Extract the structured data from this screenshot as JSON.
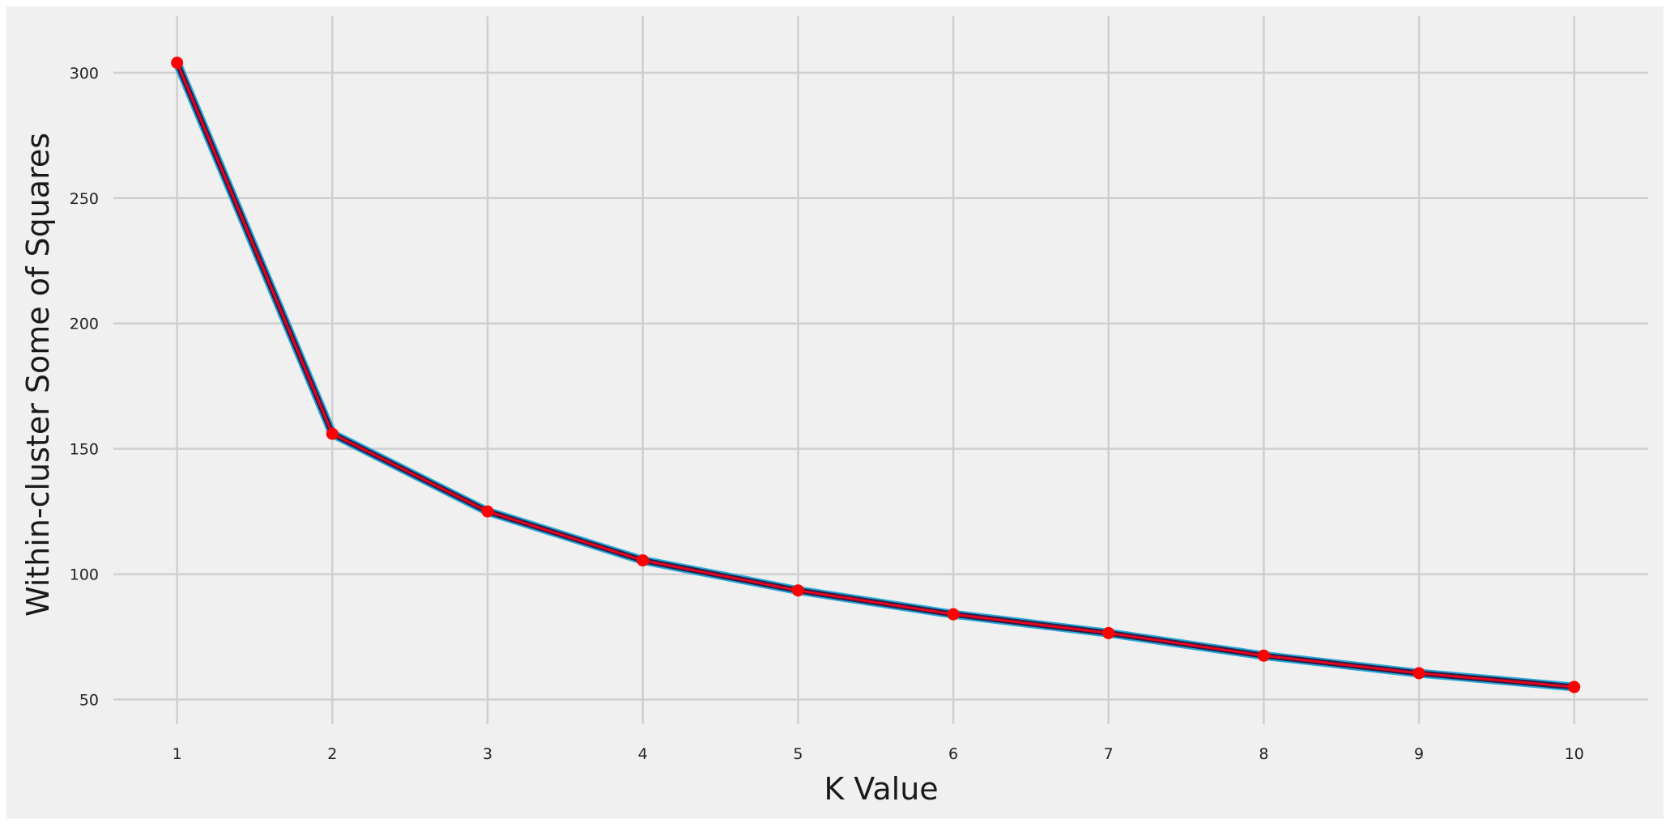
{
  "colors": {
    "background": "#ffffff",
    "plot_area": "#f0f0f0",
    "grid": "#cfcfcf",
    "line_outer": "#2aa7d6",
    "line_inner": "#2a1f4a",
    "line_core": "#e8001c",
    "marker": "#ff0000"
  },
  "chart_data": {
    "type": "line",
    "title": "",
    "xlabel": "K Value",
    "ylabel": "Within-cluster Some of Squares",
    "x": [
      1,
      2,
      3,
      4,
      5,
      6,
      7,
      8,
      9,
      10
    ],
    "series": [
      {
        "values": [
          304,
          156,
          125,
          105.5,
          93.5,
          84,
          76.5,
          67.5,
          60.5,
          55
        ]
      }
    ],
    "xticks": [
      "1",
      "2",
      "3",
      "4",
      "5",
      "6",
      "7",
      "8",
      "9",
      "10"
    ],
    "yticks": [
      "50",
      "100",
      "150",
      "200",
      "250",
      "300"
    ],
    "ytick_values": [
      50,
      100,
      150,
      200,
      250,
      300
    ],
    "xlim": [
      0.6,
      10.45
    ],
    "ylim": [
      45,
      309
    ],
    "grid": true,
    "markers": true
  }
}
